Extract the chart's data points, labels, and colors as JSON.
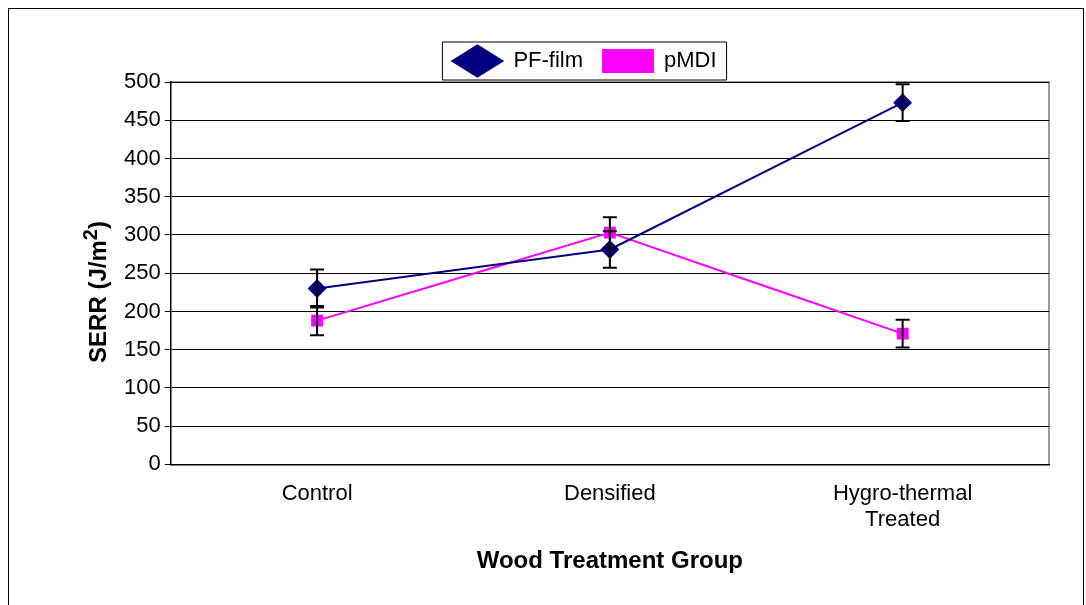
{
  "chart_data": {
    "type": "line",
    "xlabel": "Wood Treatment Group",
    "ylabel": "SERR (J/m$^{2}$)",
    "categories": [
      "Control",
      "Densified",
      "Hygro-thermal Treated"
    ],
    "series": [
      {
        "name": "PF-film",
        "color": "#000080",
        "marker": "diamond",
        "values": [
          230,
          281,
          473
        ],
        "errors": [
          25,
          24,
          24
        ]
      },
      {
        "name": "pMDI",
        "color": "#ff00ff",
        "marker": "square",
        "values": [
          188,
          303,
          171
        ],
        "errors": [
          19,
          20,
          18
        ]
      }
    ],
    "ylim": [
      0,
      500
    ],
    "yticks": [
      0,
      50,
      100,
      150,
      200,
      250,
      300,
      350,
      400,
      450,
      500
    ],
    "grid": "y",
    "legend": "top",
    "line_style": "solid"
  }
}
